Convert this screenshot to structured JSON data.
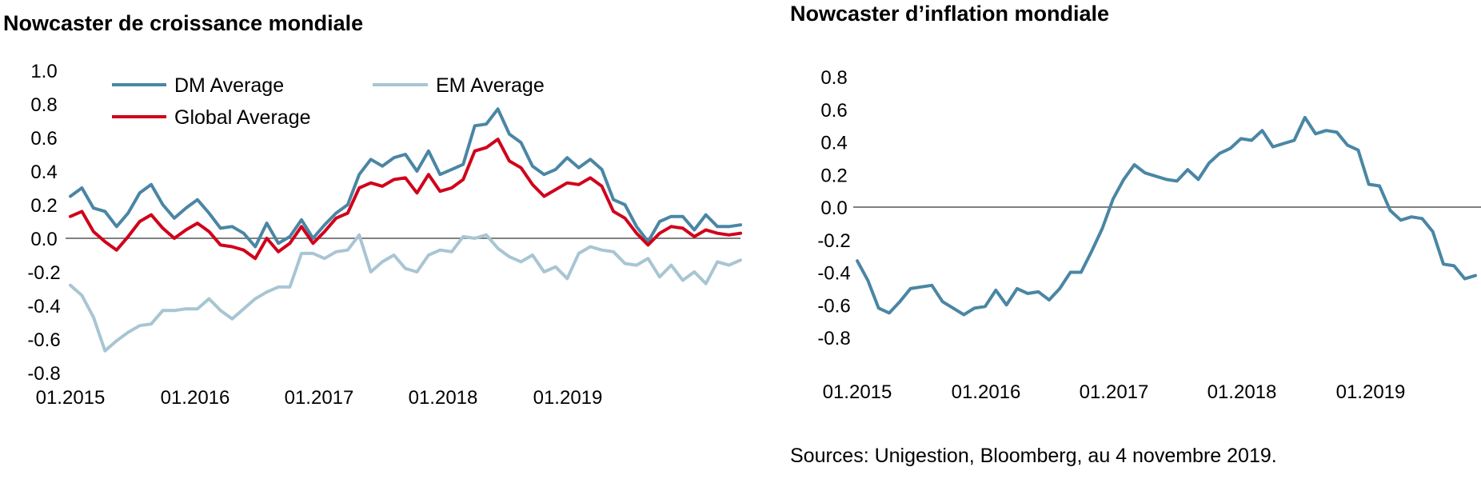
{
  "source_note": "Sources: Unigestion, Bloomberg, au 4 novembre 2019.",
  "chart_data": [
    {
      "type": "line",
      "title": "Nowcaster de croissance mondiale",
      "xlabel": "",
      "ylabel": "",
      "x_ticks": [
        "01.2015",
        "01.2016",
        "01.2017",
        "01.2018",
        "01.2019"
      ],
      "y_ticks": [
        "1.0",
        "0.8",
        "0.6",
        "0.4",
        "0.2",
        "0.0",
        "-0.2",
        "-0.4",
        "-0.6",
        "-0.8"
      ],
      "ylim": [
        -0.8,
        1.0
      ],
      "xlim": [
        "01.2015",
        "11.2019"
      ],
      "zero_line": true,
      "grid": false,
      "legend_position": "top",
      "series": [
        {
          "name": "DM Average",
          "color": "#4a86a4",
          "values": [
            0.25,
            0.3,
            0.18,
            0.16,
            0.07,
            0.15,
            0.27,
            0.32,
            0.2,
            0.12,
            0.18,
            0.23,
            0.15,
            0.06,
            0.07,
            0.03,
            -0.05,
            0.09,
            -0.03,
            0.01,
            0.11,
            0.0,
            0.08,
            0.15,
            0.2,
            0.38,
            0.47,
            0.43,
            0.48,
            0.5,
            0.4,
            0.52,
            0.38,
            0.41,
            0.44,
            0.67,
            0.68,
            0.77,
            0.62,
            0.57,
            0.43,
            0.38,
            0.41,
            0.48,
            0.42,
            0.47,
            0.41,
            0.23,
            0.2,
            0.07,
            -0.02,
            0.1,
            0.13,
            0.13,
            0.05,
            0.14,
            0.07,
            0.07,
            0.08
          ]
        },
        {
          "name": "EM Average",
          "color": "#a8c5d3",
          "values": [
            -0.28,
            -0.34,
            -0.47,
            -0.67,
            -0.61,
            -0.56,
            -0.52,
            -0.51,
            -0.43,
            -0.43,
            -0.42,
            -0.42,
            -0.36,
            -0.43,
            -0.48,
            -0.42,
            -0.36,
            -0.32,
            -0.29,
            -0.29,
            -0.09,
            -0.09,
            -0.12,
            -0.08,
            -0.07,
            0.02,
            -0.2,
            -0.14,
            -0.1,
            -0.18,
            -0.2,
            -0.1,
            -0.07,
            -0.08,
            0.01,
            0.0,
            0.02,
            -0.06,
            -0.11,
            -0.14,
            -0.1,
            -0.2,
            -0.17,
            -0.24,
            -0.09,
            -0.05,
            -0.07,
            -0.08,
            -0.15,
            -0.16,
            -0.12,
            -0.23,
            -0.16,
            -0.25,
            -0.2,
            -0.27,
            -0.14,
            -0.16,
            -0.13
          ]
        },
        {
          "name": "Global Average",
          "color": "#d0021b",
          "values": [
            0.13,
            0.16,
            0.04,
            -0.02,
            -0.07,
            0.01,
            0.1,
            0.14,
            0.06,
            0.0,
            0.05,
            0.09,
            0.04,
            -0.04,
            -0.05,
            -0.07,
            -0.12,
            0.0,
            -0.08,
            -0.03,
            0.07,
            -0.03,
            0.04,
            0.12,
            0.15,
            0.3,
            0.33,
            0.31,
            0.35,
            0.36,
            0.27,
            0.38,
            0.28,
            0.3,
            0.35,
            0.52,
            0.54,
            0.59,
            0.46,
            0.42,
            0.32,
            0.25,
            0.29,
            0.33,
            0.32,
            0.36,
            0.31,
            0.16,
            0.12,
            0.03,
            -0.04,
            0.03,
            0.07,
            0.06,
            0.01,
            0.05,
            0.03,
            0.02,
            0.03
          ]
        }
      ]
    },
    {
      "type": "line",
      "title": "Nowcaster d’inflation mondiale",
      "xlabel": "",
      "ylabel": "",
      "x_ticks": [
        "01.2015",
        "01.2016",
        "01.2017",
        "01.2018",
        "01.2019"
      ],
      "y_ticks": [
        "0.8",
        "0.6",
        "0.4",
        "0.2",
        "0.0",
        "-0.2",
        "-0.4",
        "-0.6",
        "-0.8"
      ],
      "ylim": [
        -0.8,
        0.8
      ],
      "xlim": [
        "01.2015",
        "11.2019"
      ],
      "zero_line": true,
      "grid": false,
      "series": [
        {
          "color": "#4a86a4",
          "values": [
            -0.33,
            -0.45,
            -0.62,
            -0.65,
            -0.58,
            -0.5,
            -0.49,
            -0.48,
            -0.58,
            -0.62,
            -0.66,
            -0.62,
            -0.61,
            -0.51,
            -0.6,
            -0.5,
            -0.53,
            -0.52,
            -0.57,
            -0.5,
            -0.4,
            -0.4,
            -0.27,
            -0.13,
            0.05,
            0.17,
            0.26,
            0.21,
            0.19,
            0.17,
            0.16,
            0.23,
            0.17,
            0.27,
            0.33,
            0.36,
            0.42,
            0.41,
            0.47,
            0.37,
            0.39,
            0.41,
            0.55,
            0.45,
            0.47,
            0.46,
            0.38,
            0.35,
            0.14,
            0.13,
            -0.02,
            -0.08,
            -0.06,
            -0.07,
            -0.15,
            -0.35,
            -0.36,
            -0.44,
            -0.42
          ]
        }
      ]
    }
  ]
}
